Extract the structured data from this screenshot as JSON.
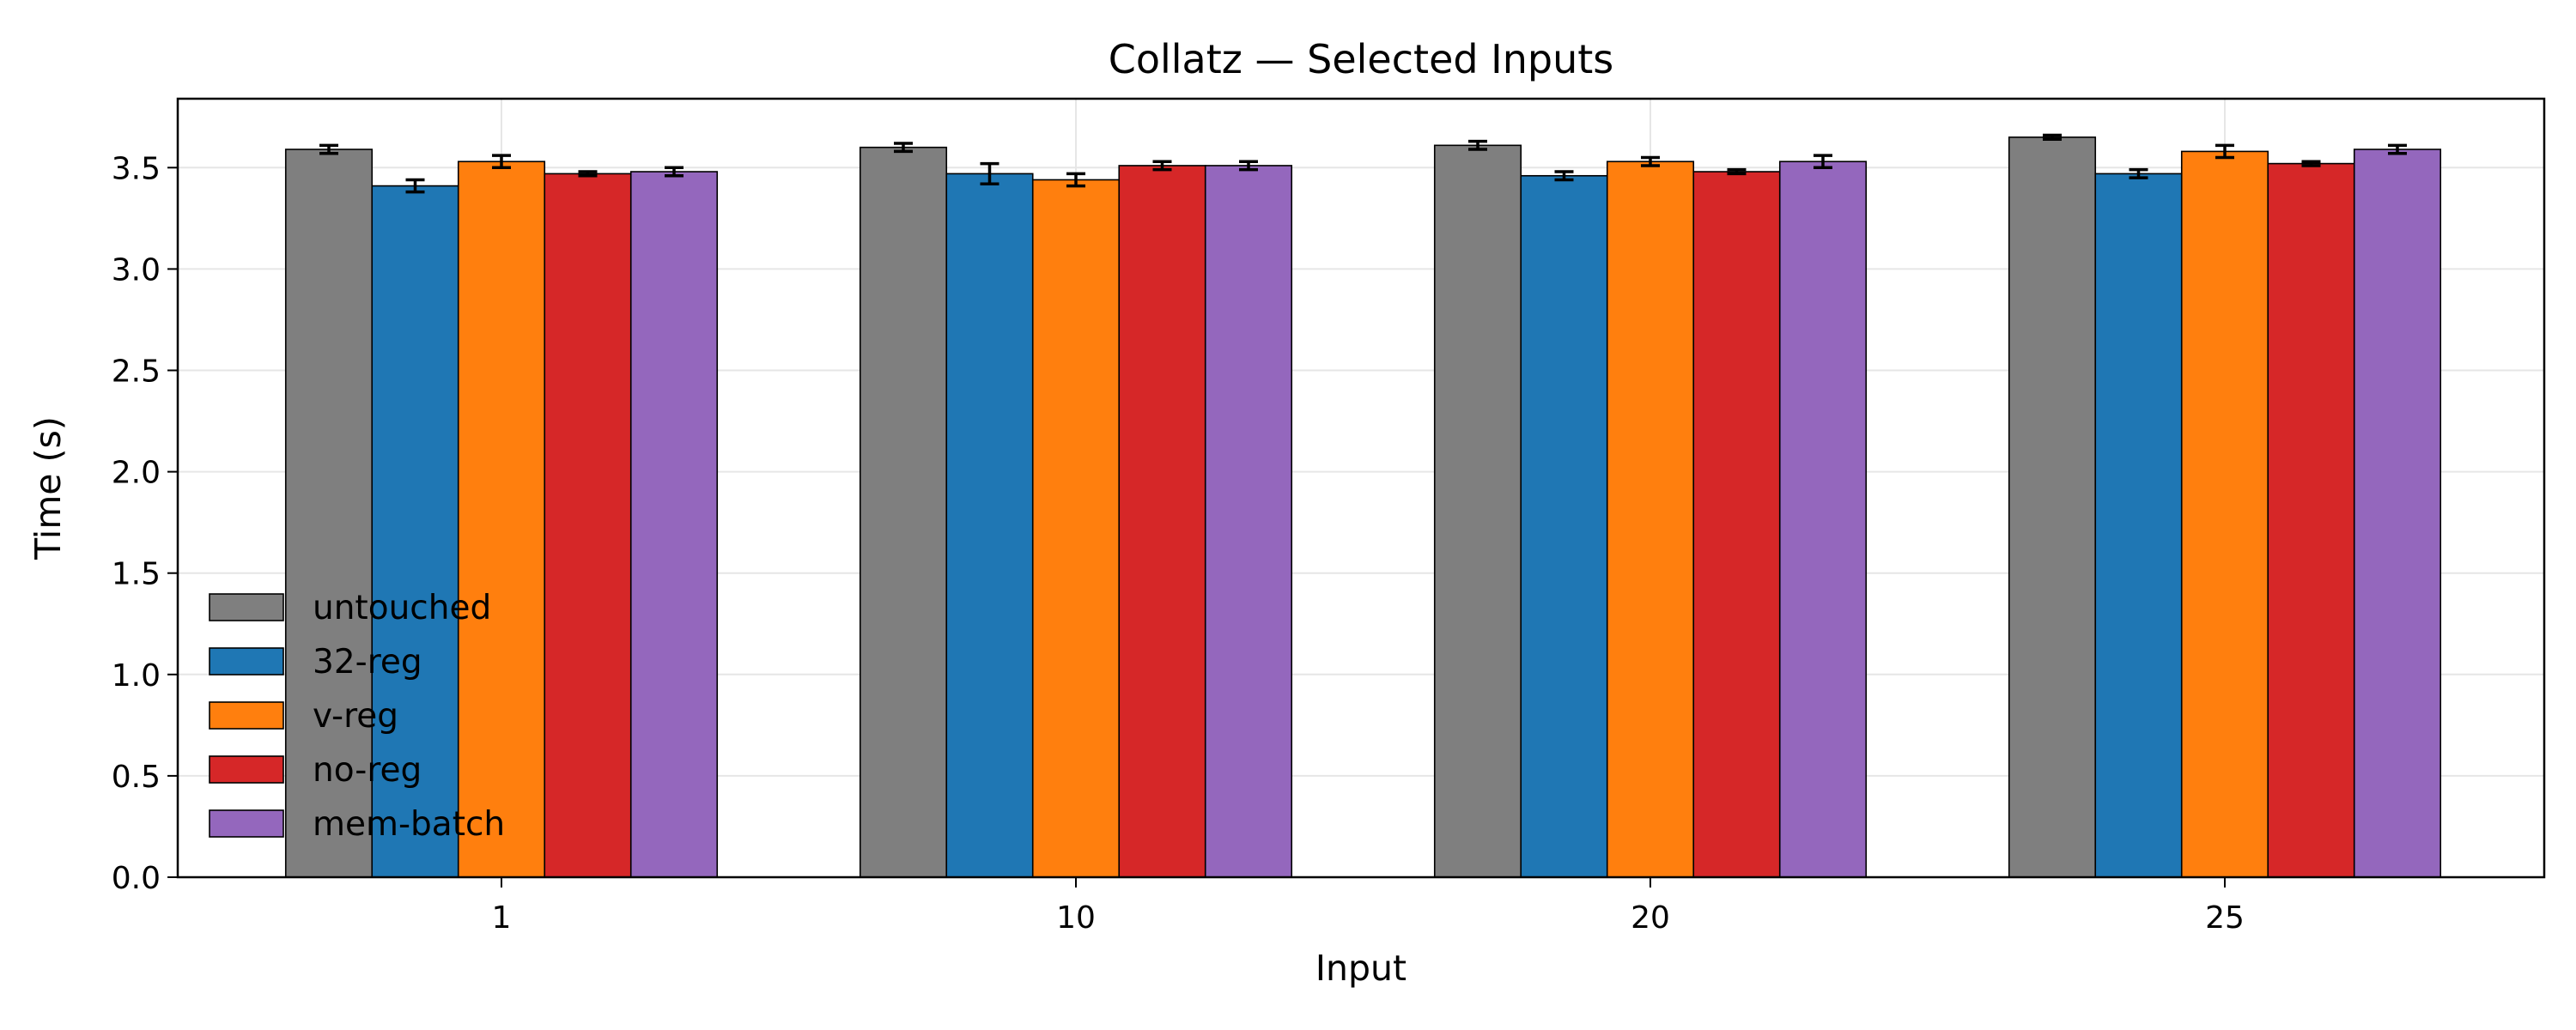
{
  "chart_data": {
    "type": "bar",
    "title": "Collatz — Selected Inputs",
    "xlabel": "Input",
    "ylabel": "Time (s)",
    "categories": [
      "1",
      "10",
      "20",
      "25"
    ],
    "ylim": [
      0,
      3.84
    ],
    "yticks": [
      "0.0",
      "0.5",
      "1.0",
      "1.5",
      "2.0",
      "2.5",
      "3.0",
      "3.5"
    ],
    "grid": true,
    "legend_position": "lower-left",
    "series": [
      {
        "name": "untouched",
        "color": "#7f7f7f",
        "values": [
          3.59,
          3.6,
          3.61,
          3.65
        ],
        "errors": [
          0.02,
          0.02,
          0.02,
          0.01
        ]
      },
      {
        "name": "32-reg",
        "color": "#1f77b4",
        "values": [
          3.41,
          3.47,
          3.46,
          3.47
        ],
        "errors": [
          0.03,
          0.05,
          0.02,
          0.02
        ]
      },
      {
        "name": "v-reg",
        "color": "#ff7f0e",
        "values": [
          3.53,
          3.44,
          3.53,
          3.58
        ],
        "errors": [
          0.03,
          0.03,
          0.02,
          0.03
        ]
      },
      {
        "name": "no-reg",
        "color": "#d62728",
        "values": [
          3.47,
          3.51,
          3.48,
          3.52
        ],
        "errors": [
          0.01,
          0.02,
          0.01,
          0.01
        ]
      },
      {
        "name": "mem-batch",
        "color": "#9467bd",
        "values": [
          3.48,
          3.51,
          3.53,
          3.59
        ],
        "errors": [
          0.02,
          0.02,
          0.03,
          0.02
        ]
      }
    ]
  }
}
